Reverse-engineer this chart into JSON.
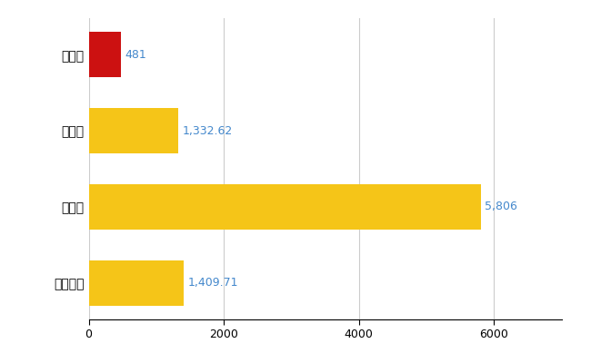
{
  "categories": [
    "尾鷲市",
    "県平均",
    "県最大",
    "全国平均"
  ],
  "values": [
    481,
    1332.62,
    5806,
    1409.71
  ],
  "labels": [
    "481",
    "1,332.62",
    "5,806",
    "1,409.71"
  ],
  "colors": [
    "#cc1111",
    "#f5c518",
    "#f5c518",
    "#f5c518"
  ],
  "hatch": [
    ".",
    ".",
    ".",
    "."
  ],
  "background_color": "#ffffff",
  "grid_color": "#cccccc",
  "label_color": "#4488cc",
  "xlim": [
    0,
    7000
  ],
  "xticks": [
    0,
    2000,
    4000,
    6000
  ],
  "bar_height": 0.6,
  "label_fontsize": 9,
  "tick_fontsize": 9,
  "ytick_fontsize": 10
}
